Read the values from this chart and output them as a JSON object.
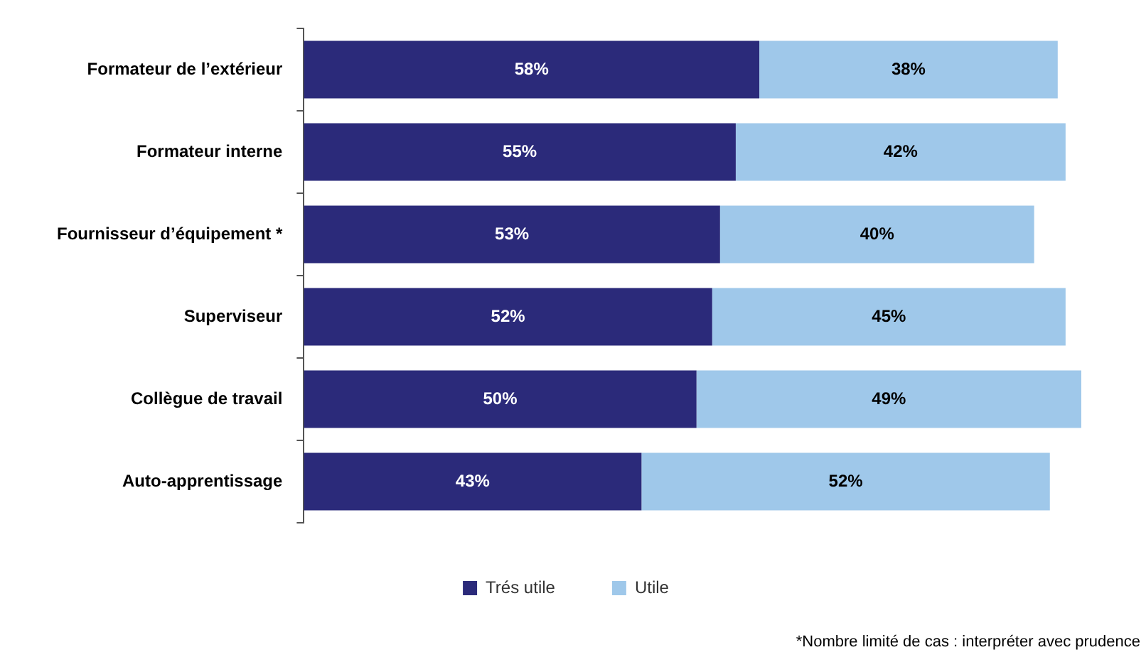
{
  "chart_data": {
    "type": "bar",
    "orientation": "horizontal",
    "stacked": true,
    "categories": [
      "Formateur de l’extérieur",
      "Formateur interne",
      "Fournisseur d’équipement *",
      "Superviseur",
      "Collègue de travail",
      "Auto-apprentissage"
    ],
    "series": [
      {
        "name": "Trés utile",
        "color": "#2b2a7a",
        "values": [
          58,
          55,
          53,
          52,
          50,
          43
        ],
        "value_labels": [
          "58%",
          "55%",
          "53%",
          "52%",
          "50%",
          "43%"
        ]
      },
      {
        "name": "Utile",
        "color": "#9fc8ea",
        "values": [
          38,
          42,
          40,
          45,
          49,
          52
        ],
        "value_labels": [
          "38%",
          "42%",
          "40%",
          "45%",
          "49%",
          "52%"
        ]
      }
    ],
    "legend": "bottom",
    "annotations": [
      "*Nombre limité de cas : interpréter avec prudence"
    ]
  }
}
